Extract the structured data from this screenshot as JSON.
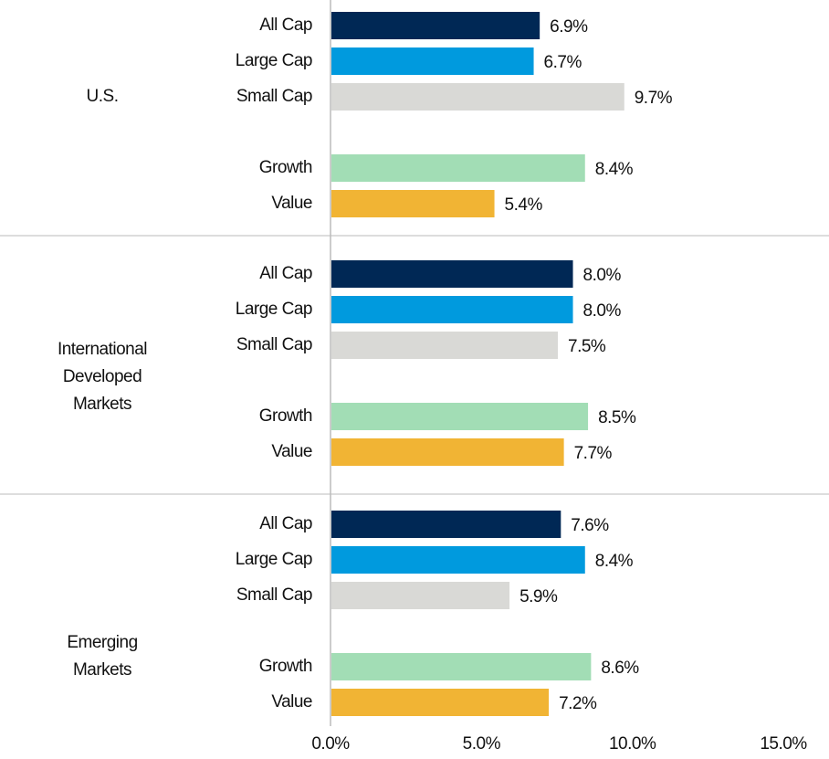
{
  "chart_data": {
    "type": "grouped-hbar",
    "colors": [
      "#002855",
      "#009ade",
      "#d9d9d6",
      "#a2ddb5",
      "#f1b434"
    ],
    "groups": [
      {
        "name_lines": [
          "U.S."
        ],
        "categories": [
          "All Cap",
          "Large Cap",
          "Small Cap",
          "Growth",
          "Value"
        ],
        "values": [
          6.9,
          6.7,
          9.7,
          8.4,
          5.4
        ],
        "value_labels": [
          "6.9%",
          "6.7%",
          "9.7%",
          "8.4%",
          "5.4%"
        ]
      },
      {
        "name_lines": [
          "International",
          "Developed",
          "Markets"
        ],
        "categories": [
          "All Cap",
          "Large Cap",
          "Small Cap",
          "Growth",
          "Value"
        ],
        "values": [
          8.0,
          8.0,
          7.5,
          8.5,
          7.7
        ],
        "value_labels": [
          "8.0%",
          "8.0%",
          "7.5%",
          "8.5%",
          "7.7%"
        ]
      },
      {
        "name_lines": [
          "Emerging",
          "Markets"
        ],
        "categories": [
          "All Cap",
          "Large Cap",
          "Small Cap",
          "Growth",
          "Value"
        ],
        "values": [
          7.6,
          8.4,
          5.9,
          8.6,
          7.2
        ],
        "value_labels": [
          "7.6%",
          "8.4%",
          "5.9%",
          "8.6%",
          "7.2%"
        ]
      }
    ],
    "xlim": [
      0,
      15
    ],
    "xticks": [
      {
        "value": 0,
        "label": "0.0%"
      },
      {
        "value": 5,
        "label": "5.0%"
      },
      {
        "value": 10,
        "label": "10.0%"
      },
      {
        "value": 15,
        "label": "15.0%"
      }
    ]
  }
}
